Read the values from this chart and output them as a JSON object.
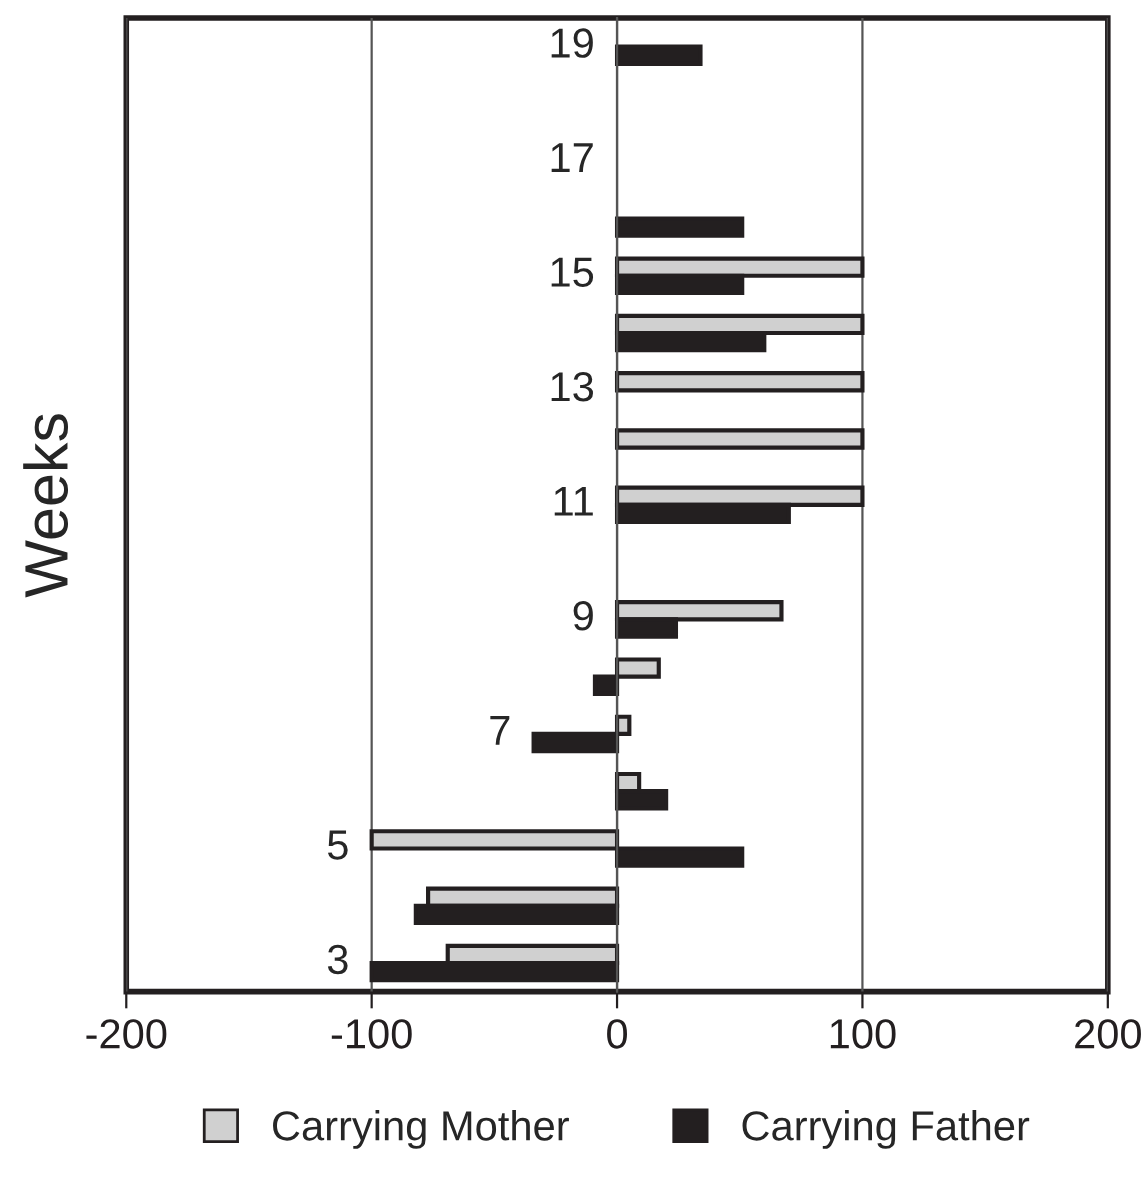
{
  "chart_data": {
    "type": "bar",
    "orientation": "horizontal",
    "ylabel": "Weeks",
    "categories": [
      "19",
      null,
      "17",
      null,
      "15",
      null,
      "13",
      null,
      "11",
      null,
      "9",
      null,
      "7",
      null,
      "5",
      null,
      "3"
    ],
    "series": [
      {
        "name": "Carrying Mother",
        "color": "#d0d0d0",
        "values": [
          null,
          null,
          null,
          null,
          100,
          100,
          100,
          100,
          100,
          null,
          67,
          17,
          5,
          9,
          -100,
          -77,
          -69
        ]
      },
      {
        "name": "Carrying Father",
        "color": "#231f20",
        "values": [
          34,
          null,
          null,
          51,
          51,
          60,
          null,
          null,
          70,
          null,
          24,
          -9,
          -34,
          20,
          51,
          -82,
          -100
        ]
      }
    ],
    "xlim": [
      -200,
      200
    ],
    "xticks": [
      -200,
      -100,
      0,
      100,
      200
    ],
    "grid": "x",
    "legend": "bottom"
  }
}
